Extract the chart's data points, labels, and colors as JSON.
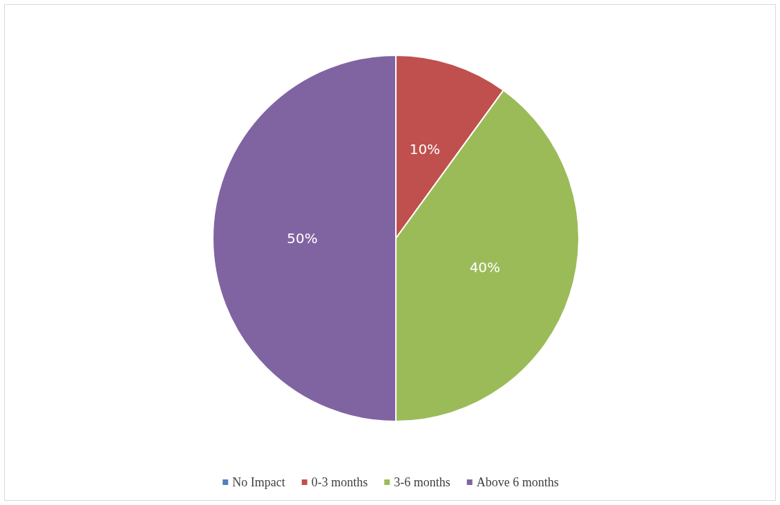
{
  "chart_data": {
    "type": "pie",
    "categories": [
      "No Impact",
      "0-3 months",
      "3-6 months",
      "Above 6 months"
    ],
    "values": [
      0,
      10,
      40,
      50
    ],
    "colors": [
      "#4f81bd",
      "#c0504d",
      "#9bbb59",
      "#8064a2"
    ],
    "value_labels": [
      null,
      "10%",
      "40%",
      "50%"
    ],
    "legend": "bottom"
  }
}
